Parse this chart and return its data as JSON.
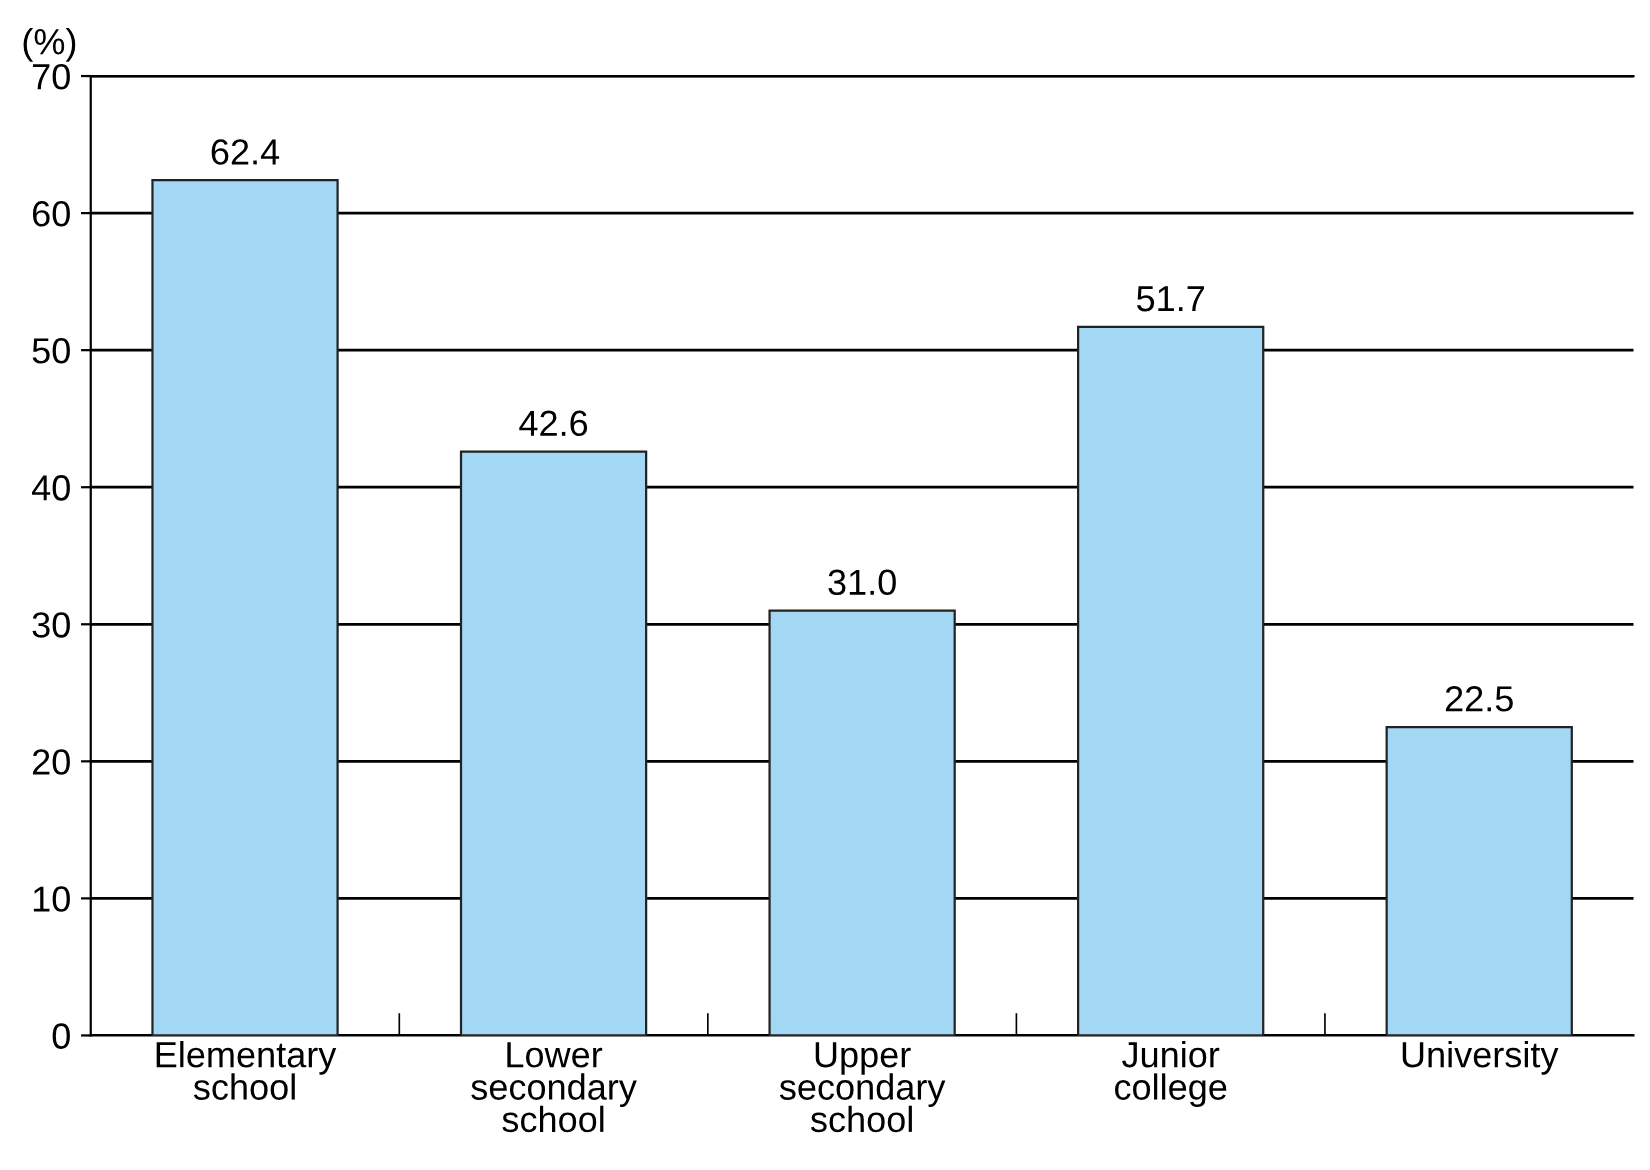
{
  "chart_data": {
    "type": "bar",
    "ylabel": "(%)",
    "categories": [
      "Elementary\nschool",
      "Lower\nsecondary\nschool",
      "Upper\nsecondary\nschool",
      "Junior\ncollege",
      "University"
    ],
    "values": [
      62.4,
      42.6,
      31.0,
      51.7,
      22.5
    ],
    "value_labels": [
      "62.4",
      "42.6",
      "31.0",
      "51.7",
      "22.5"
    ],
    "color": "#a3d8f5",
    "ylim": [
      0,
      70
    ],
    "yticks": [
      0,
      10,
      20,
      30,
      40,
      50,
      60,
      70
    ],
    "grid": "y",
    "legend": false
  }
}
